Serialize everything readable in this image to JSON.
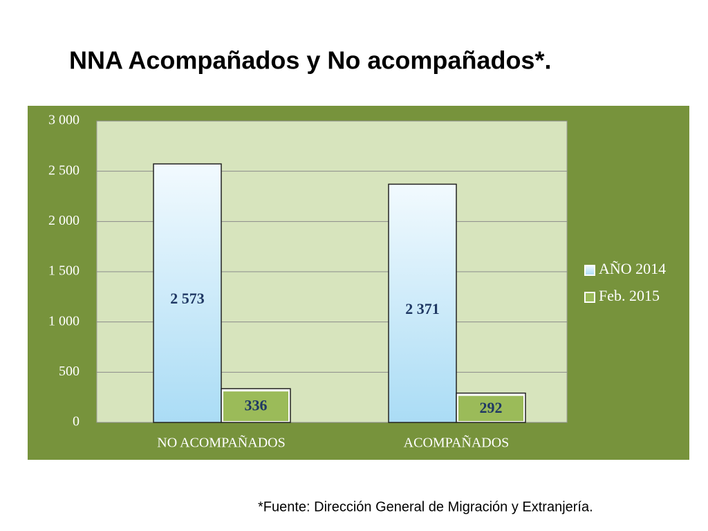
{
  "chart_data": {
    "type": "bar",
    "title": "NNA Acompañados y No acompañados*.",
    "categories": [
      "NO ACOMPAÑADOS",
      "ACOMPAÑADOS"
    ],
    "series": [
      {
        "name": "AÑO 2014",
        "color": "#c6eafb",
        "values": [
          2573,
          2371
        ],
        "value_labels": [
          "2 573",
          "2 371"
        ]
      },
      {
        "name": "Feb. 2015",
        "color": "#9bbb59",
        "values": [
          336,
          292
        ]
      }
    ],
    "ylim": [
      0,
      3000
    ],
    "yticks": [
      {
        "value": 0,
        "label": "0"
      },
      {
        "value": 500,
        "label": "500"
      },
      {
        "value": 1000,
        "label": "1 000"
      },
      {
        "value": 1500,
        "label": "1 500"
      },
      {
        "value": 2000,
        "label": "2 000"
      },
      {
        "value": 2500,
        "label": "2 500"
      },
      {
        "value": 3000,
        "label": "3 000"
      }
    ],
    "grid": true,
    "legend": "right",
    "footnote": "*Fuente: Dirección General de Migración y Extranjería."
  }
}
